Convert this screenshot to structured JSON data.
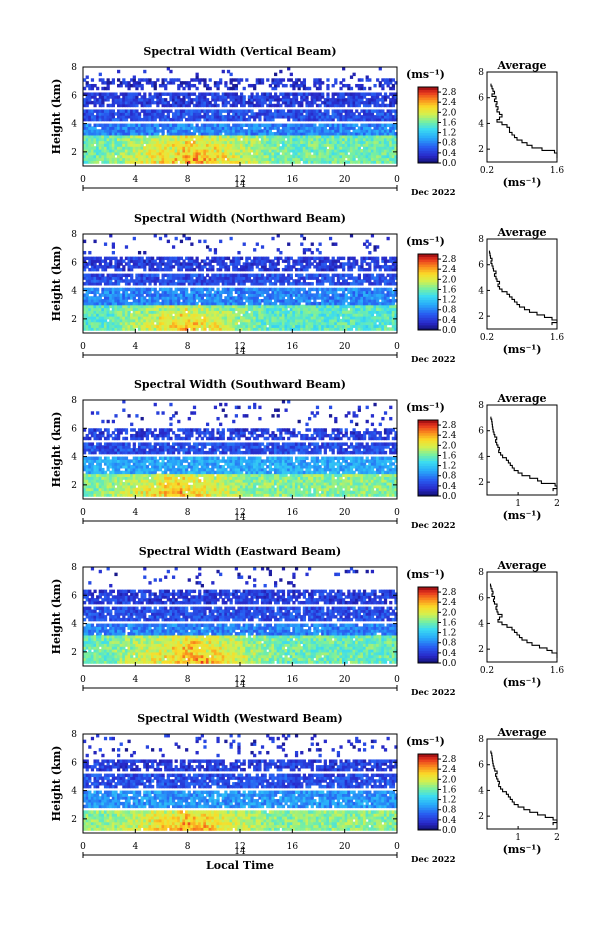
{
  "chart_data": [
    {
      "type": "heatmap",
      "title": "Spectral Width (Vertical Beam)",
      "ylabel": "Height (km)",
      "xlabel": "",
      "xlim": [
        0,
        24
      ],
      "ylim": [
        1,
        8
      ],
      "xticks": [
        "0",
        "4",
        "8",
        "12",
        "16",
        "20",
        "0"
      ],
      "yticks": [
        "2",
        "4",
        "6",
        "8"
      ],
      "day_label": "14",
      "month_label": "Dec 2022",
      "colorbar": {
        "unit": "(ms⁻¹)",
        "ticks": [
          "2.8",
          "2.4",
          "2.0",
          "1.6",
          "1.2",
          "0.8",
          "0.4",
          "0.0"
        ],
        "range": [
          0,
          3.0
        ]
      },
      "profile": {
        "title": "Average",
        "xticks": [
          "0.2",
          "1.6"
        ],
        "xlim": [
          0.2,
          1.6
        ],
        "xlabel": "(ms⁻¹)",
        "yticks": [
          "2",
          "4",
          "6",
          "8"
        ],
        "heights": [
          1.4,
          1.6,
          1.8,
          2.0,
          2.2,
          2.4,
          2.6,
          2.8,
          3.0,
          3.2,
          3.4,
          3.6,
          3.8,
          4.0,
          4.2,
          4.4,
          4.6,
          4.8,
          5.0,
          5.2,
          5.4,
          5.6,
          5.8,
          6.0,
          6.2,
          6.4,
          6.6,
          6.8,
          7.0
        ],
        "values": [
          1.6,
          1.6,
          1.55,
          1.3,
          1.1,
          1.0,
          0.9,
          0.8,
          0.75,
          0.7,
          0.65,
          0.65,
          0.6,
          0.5,
          0.4,
          0.45,
          0.5,
          0.45,
          0.4,
          0.42,
          0.38,
          0.4,
          0.35,
          0.38,
          0.3,
          0.35,
          0.32,
          0.3,
          0.28
        ]
      },
      "layers": [
        {
          "y0": 1.3,
          "y1": 3.2,
          "mean": 1.6,
          "cov": 0.98
        },
        {
          "y0": 3.2,
          "y1": 4.0,
          "mean": 0.8,
          "cov": 0.95
        },
        {
          "y0": 4.3,
          "y1": 5.1,
          "mean": 0.5,
          "cov": 0.9
        },
        {
          "y0": 5.2,
          "y1": 6.2,
          "mean": 0.4,
          "cov": 0.85
        },
        {
          "y0": 6.4,
          "y1": 7.2,
          "mean": 0.3,
          "cov": 0.45
        },
        {
          "y0": 7.3,
          "y1": 8.0,
          "mean": 0.3,
          "cov": 0.03
        }
      ],
      "hot": {
        "t0": 1.5,
        "t1": 15,
        "y0": 1.3,
        "y1": 3.2,
        "boost": 1.0
      }
    },
    {
      "type": "heatmap",
      "title": "Spectral Width (Northward Beam)",
      "ylabel": "Height (km)",
      "xlabel": "",
      "xlim": [
        0,
        24
      ],
      "ylim": [
        1,
        8
      ],
      "xticks": [
        "0",
        "4",
        "8",
        "12",
        "16",
        "20",
        "0"
      ],
      "yticks": [
        "2",
        "4",
        "6",
        "8"
      ],
      "day_label": "14",
      "month_label": "Dec 2022",
      "colorbar": {
        "unit": "(ms⁻¹)",
        "ticks": [
          "2.8",
          "2.4",
          "2.0",
          "1.6",
          "1.2",
          "0.8",
          "0.4",
          "0.0"
        ],
        "range": [
          0,
          3.0
        ]
      },
      "profile": {
        "title": "Average",
        "xticks": [
          "0.2",
          "1.6"
        ],
        "xlim": [
          0.2,
          1.6
        ],
        "xlabel": "(ms⁻¹)",
        "yticks": [
          "2",
          "4",
          "6",
          "8"
        ],
        "heights": [
          1.4,
          1.6,
          1.8,
          2.0,
          2.2,
          2.4,
          2.6,
          2.8,
          3.0,
          3.2,
          3.4,
          3.6,
          3.8,
          4.0,
          4.2,
          4.4,
          4.6,
          4.8,
          5.0,
          5.2,
          5.4,
          5.6,
          5.8,
          6.0,
          6.2,
          6.4,
          6.6,
          6.8,
          7.0
        ],
        "values": [
          1.5,
          1.6,
          1.5,
          1.35,
          1.2,
          1.05,
          0.95,
          0.85,
          0.8,
          0.75,
          0.7,
          0.65,
          0.6,
          0.5,
          0.45,
          0.42,
          0.45,
          0.4,
          0.38,
          0.35,
          0.38,
          0.33,
          0.32,
          0.3,
          0.28,
          0.3,
          0.27,
          0.26,
          0.25
        ]
      },
      "layers": [
        {
          "y0": 1.3,
          "y1": 3.0,
          "mean": 1.5,
          "cov": 0.97
        },
        {
          "y0": 3.0,
          "y1": 4.2,
          "mean": 0.8,
          "cov": 0.9
        },
        {
          "y0": 4.4,
          "y1": 5.2,
          "mean": 0.5,
          "cov": 0.85
        },
        {
          "y0": 5.4,
          "y1": 6.4,
          "mean": 0.4,
          "cov": 0.75
        },
        {
          "y0": 6.6,
          "y1": 8.0,
          "mean": 0.3,
          "cov": 0.08
        }
      ],
      "hot": {
        "t0": 1.5,
        "t1": 14,
        "y0": 1.3,
        "y1": 3.0,
        "boost": 1.0
      }
    },
    {
      "type": "heatmap",
      "title": "Spectral Width (Southward Beam)",
      "ylabel": "Height (km)",
      "xlabel": "",
      "xlim": [
        0,
        24
      ],
      "ylim": [
        1,
        8
      ],
      "xticks": [
        "0",
        "4",
        "8",
        "12",
        "16",
        "20",
        "0"
      ],
      "yticks": [
        "2",
        "4",
        "6",
        "8"
      ],
      "day_label": "14",
      "month_label": "Dec 2022",
      "colorbar": {
        "unit": "(ms⁻¹)",
        "ticks": [
          "2.8",
          "2.4",
          "2.0",
          "1.6",
          "1.2",
          "0.8",
          "0.4",
          "0.0"
        ],
        "range": [
          0,
          3.0
        ]
      },
      "profile": {
        "title": "Average",
        "xticks": [
          "1",
          "2"
        ],
        "xlim": [
          0.2,
          2.0
        ],
        "xlabel": "(ms⁻¹)",
        "yticks": [
          "2",
          "4",
          "6",
          "8"
        ],
        "heights": [
          1.4,
          1.6,
          1.8,
          2.0,
          2.2,
          2.4,
          2.6,
          2.8,
          3.0,
          3.2,
          3.4,
          3.6,
          3.8,
          4.0,
          4.2,
          4.4,
          4.6,
          4.8,
          5.0,
          5.2,
          5.4,
          5.6,
          5.8,
          6.0,
          6.2,
          6.4,
          6.6,
          6.8,
          7.0
        ],
        "values": [
          1.9,
          2.0,
          1.95,
          1.6,
          1.5,
          1.3,
          1.1,
          1.0,
          0.9,
          0.85,
          0.8,
          0.75,
          0.7,
          0.6,
          0.55,
          0.5,
          0.52,
          0.48,
          0.45,
          0.42,
          0.45,
          0.4,
          0.38,
          0.36,
          0.35,
          0.34,
          0.33,
          0.32,
          0.3
        ]
      },
      "layers": [
        {
          "y0": 1.3,
          "y1": 2.8,
          "mean": 1.7,
          "cov": 0.97
        },
        {
          "y0": 2.9,
          "y1": 4.1,
          "mean": 1.0,
          "cov": 0.9
        },
        {
          "y0": 4.3,
          "y1": 5.0,
          "mean": 0.5,
          "cov": 0.85
        },
        {
          "y0": 5.2,
          "y1": 6.1,
          "mean": 0.4,
          "cov": 0.7
        },
        {
          "y0": 6.3,
          "y1": 8.0,
          "mean": 0.3,
          "cov": 0.08
        }
      ],
      "hot": {
        "t0": 1.5,
        "t1": 13,
        "y0": 1.3,
        "y1": 2.8,
        "boost": 0.8
      }
    },
    {
      "type": "heatmap",
      "title": "Spectral Width (Eastward Beam)",
      "ylabel": "Height (km)",
      "xlabel": "",
      "xlim": [
        0,
        24
      ],
      "ylim": [
        1,
        8
      ],
      "xticks": [
        "0",
        "4",
        "8",
        "12",
        "16",
        "20",
        "0"
      ],
      "yticks": [
        "2",
        "4",
        "6",
        "8"
      ],
      "day_label": "14",
      "month_label": "Dec 2022",
      "colorbar": {
        "unit": "(ms⁻¹)",
        "ticks": [
          "2.8",
          "2.4",
          "2.0",
          "1.6",
          "1.2",
          "0.8",
          "0.4",
          "0.0"
        ],
        "range": [
          0,
          3.0
        ]
      },
      "profile": {
        "title": "Average",
        "xticks": [
          "0.2",
          "1.6"
        ],
        "xlim": [
          0.2,
          1.6
        ],
        "xlabel": "(ms⁻¹)",
        "yticks": [
          "2",
          "4",
          "6",
          "8"
        ],
        "heights": [
          1.4,
          1.6,
          1.8,
          2.0,
          2.2,
          2.4,
          2.6,
          2.8,
          3.0,
          3.2,
          3.4,
          3.6,
          3.8,
          4.0,
          4.2,
          4.4,
          4.6,
          4.8,
          5.0,
          5.2,
          5.4,
          5.6,
          5.8,
          6.0,
          6.2,
          6.4,
          6.6,
          6.8,
          7.0
        ],
        "values": [
          1.6,
          1.6,
          1.5,
          1.4,
          1.25,
          1.1,
          1.0,
          0.9,
          0.85,
          0.8,
          0.75,
          0.7,
          0.6,
          0.5,
          0.42,
          0.45,
          0.5,
          0.42,
          0.4,
          0.38,
          0.4,
          0.35,
          0.33,
          0.35,
          0.3,
          0.32,
          0.3,
          0.28,
          0.27
        ]
      },
      "layers": [
        {
          "y0": 1.3,
          "y1": 3.2,
          "mean": 1.6,
          "cov": 0.98
        },
        {
          "y0": 3.2,
          "y1": 4.0,
          "mean": 0.8,
          "cov": 0.92
        },
        {
          "y0": 4.3,
          "y1": 5.2,
          "mean": 0.5,
          "cov": 0.88
        },
        {
          "y0": 5.4,
          "y1": 6.4,
          "mean": 0.4,
          "cov": 0.8
        },
        {
          "y0": 6.6,
          "y1": 8.0,
          "mean": 0.3,
          "cov": 0.08
        }
      ],
      "hot": {
        "t0": 1.5,
        "t1": 15,
        "y0": 1.3,
        "y1": 3.2,
        "boost": 1.0
      }
    },
    {
      "type": "heatmap",
      "title": "Spectral Width (Westward Beam)",
      "ylabel": "Height (km)",
      "xlabel": "Local Time",
      "xlim": [
        0,
        24
      ],
      "ylim": [
        1,
        8
      ],
      "xticks": [
        "0",
        "4",
        "8",
        "12",
        "16",
        "20",
        "0"
      ],
      "yticks": [
        "2",
        "4",
        "6",
        "8"
      ],
      "day_label": "14",
      "month_label": "Dec 2022",
      "colorbar": {
        "unit": "(ms⁻¹)",
        "ticks": [
          "2.8",
          "2.4",
          "2.0",
          "1.6",
          "1.2",
          "0.8",
          "0.4",
          "0.0"
        ],
        "range": [
          0,
          3.0
        ]
      },
      "profile": {
        "title": "Average",
        "xticks": [
          "1",
          "2"
        ],
        "xlim": [
          0.2,
          2.0
        ],
        "xlabel": "(ms⁻¹)",
        "yticks": [
          "2",
          "4",
          "6",
          "8"
        ],
        "heights": [
          1.4,
          1.6,
          1.8,
          2.0,
          2.2,
          2.4,
          2.6,
          2.8,
          3.0,
          3.2,
          3.4,
          3.6,
          3.8,
          4.0,
          4.2,
          4.4,
          4.6,
          4.8,
          5.0,
          5.2,
          5.4,
          5.6,
          5.8,
          6.0,
          6.2,
          6.4,
          6.6,
          6.8,
          7.0
        ],
        "values": [
          1.9,
          2.0,
          1.9,
          1.7,
          1.5,
          1.3,
          1.15,
          1.0,
          0.9,
          0.85,
          0.8,
          0.75,
          0.7,
          0.6,
          0.55,
          0.5,
          0.52,
          0.48,
          0.45,
          0.42,
          0.46,
          0.4,
          0.38,
          0.36,
          0.35,
          0.34,
          0.33,
          0.32,
          0.3
        ]
      },
      "layers": [
        {
          "y0": 1.3,
          "y1": 2.6,
          "mean": 1.7,
          "cov": 0.98
        },
        {
          "y0": 2.8,
          "y1": 4.0,
          "mean": 0.9,
          "cov": 0.9
        },
        {
          "y0": 4.3,
          "y1": 5.2,
          "mean": 0.5,
          "cov": 0.85
        },
        {
          "y0": 5.4,
          "y1": 6.3,
          "mean": 0.4,
          "cov": 0.75
        },
        {
          "y0": 6.5,
          "y1": 8.0,
          "mean": 0.3,
          "cov": 0.1
        }
      ],
      "hot": {
        "t0": 1.5,
        "t1": 14,
        "y0": 1.3,
        "y1": 2.6,
        "boost": 0.9
      }
    }
  ]
}
